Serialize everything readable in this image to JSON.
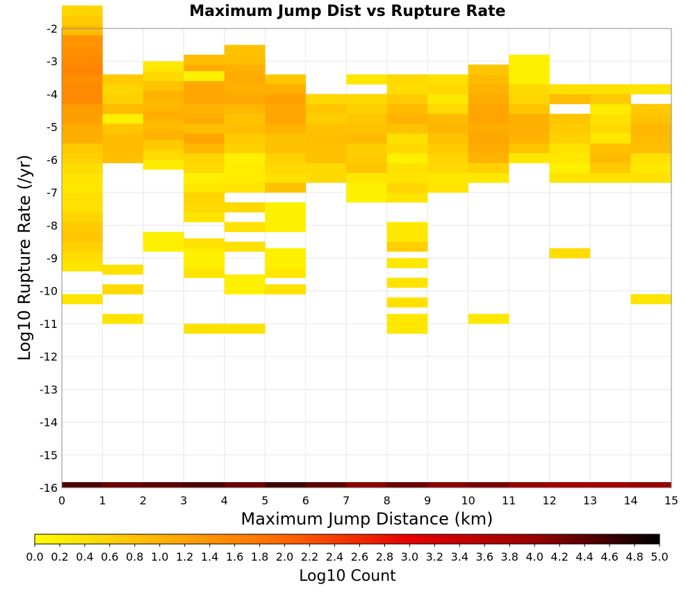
{
  "chart_data": {
    "type": "heatmap",
    "title": "Maximum Jump Dist vs Rupture Rate",
    "xlabel": "Maximum Jump Distance (km)",
    "ylabel": "Log10 Rupture Rate (/yr)",
    "xlim": [
      0,
      15
    ],
    "ylim": [
      -16,
      -2
    ],
    "xticks": [
      "0",
      "1",
      "2",
      "3",
      "4",
      "5",
      "6",
      "7",
      "8",
      "9",
      "10",
      "11",
      "12",
      "13",
      "14",
      "15"
    ],
    "yticks": [
      "-2",
      "-3",
      "-4",
      "-5",
      "-6",
      "-7",
      "-8",
      "-9",
      "-10",
      "-11",
      "-12",
      "-13",
      "-14",
      "-15",
      "-16"
    ],
    "grid": true,
    "x_bin_width": 1,
    "y_bin_height": 0.3,
    "colorbar": {
      "label": "Log10 Count",
      "range": [
        0,
        5
      ],
      "ticks": [
        "0.0",
        "0.2",
        "0.4",
        "0.6",
        "0.8",
        "1.0",
        "1.2",
        "1.4",
        "1.6",
        "1.8",
        "2.0",
        "2.2",
        "2.4",
        "2.6",
        "2.8",
        "3.0",
        "3.2",
        "3.4",
        "3.6",
        "3.8",
        "4.0",
        "4.2",
        "4.4",
        "4.6",
        "4.8",
        "5.0"
      ],
      "colors": [
        "#ffff00",
        "#ffb300",
        "#ff6600",
        "#e60000",
        "#990000",
        "#000000"
      ]
    },
    "columns": [
      {
        "x": 0,
        "y0": -7.0,
        "values": [
          0.3,
          0.35,
          0.45,
          0.6,
          0.7,
          1.05,
          1.1,
          1.25,
          1.3,
          1.55,
          1.55,
          1.5,
          1.6,
          1.55,
          1.45,
          1.4,
          0.9,
          0.7,
          0.55
        ]
      },
      {
        "x": 0,
        "y0": -8.2,
        "values": [
          0.7,
          0.55,
          0.4,
          0.4
        ]
      },
      {
        "x": 0,
        "y0": -9.4,
        "values": [
          0.35,
          0.45,
          0.6,
          0.75
        ]
      },
      {
        "x": 0,
        "y0": -10.4,
        "values": [
          0.35
        ]
      },
      {
        "x": 1,
        "y0": -6.1,
        "values": [
          0.85,
          0.9,
          0.9,
          0.75,
          0.2,
          0.9,
          0.6,
          0.55,
          0.7
        ]
      },
      {
        "x": 1,
        "y0": -9.5,
        "values": [
          0.4
        ]
      },
      {
        "x": 1,
        "y0": -10.1,
        "values": [
          0.5
        ]
      },
      {
        "x": 1,
        "y0": -11.0,
        "values": [
          0.35
        ]
      },
      {
        "x": 2,
        "y0": -6.3,
        "values": [
          0.25,
          0.5,
          0.7,
          1.0,
          0.9,
          1.05,
          0.95,
          1.0,
          0.8,
          0.5,
          0.3
        ]
      },
      {
        "x": 2,
        "y0": -8.8,
        "values": [
          0.2,
          0.2
        ]
      },
      {
        "x": 3,
        "y0": -7.0,
        "values": [
          0.3,
          0.2,
          0.5,
          0.55,
          0.95,
          1.2,
          0.85,
          1.1,
          1.0,
          1.2,
          1.15,
          1.15,
          1.1,
          0.9
        ]
      },
      {
        "x": 3,
        "y0": -3.6,
        "values": [
          0.2
        ]
      },
      {
        "x": 3,
        "y0": -7.9,
        "values": [
          0.35,
          0.5,
          0.55
        ]
      },
      {
        "x": 3,
        "y0": -9.6,
        "values": [
          0.35,
          0.2,
          0.2,
          0.4
        ]
      },
      {
        "x": 3,
        "y0": -11.3,
        "values": [
          0.4
        ]
      },
      {
        "x": 4,
        "y0": -7.0,
        "values": [
          0.35,
          0.25,
          0.25,
          0.2,
          0.6,
          0.7,
          0.85,
          0.8,
          0.95,
          1.15,
          1.05,
          1.1,
          1.05,
          0.85,
          0.8
        ]
      },
      {
        "x": 4,
        "y0": -7.6,
        "values": [
          0.5
        ]
      },
      {
        "x": 4,
        "y0": -8.2,
        "values": [
          0.4
        ]
      },
      {
        "x": 4,
        "y0": -8.8,
        "values": [
          0.4
        ]
      },
      {
        "x": 4,
        "y0": -10.1,
        "values": [
          0.2,
          0.2
        ]
      },
      {
        "x": 4,
        "y0": -11.3,
        "values": [
          0.4
        ]
      },
      {
        "x": 5,
        "y0": -7.0,
        "values": [
          0.8,
          0.4,
          0.5,
          0.6,
          0.8,
          0.8,
          1.0,
          1.15,
          1.15,
          1.25,
          1.05,
          0.75
        ]
      },
      {
        "x": 5,
        "y0": -8.2,
        "values": [
          0.2,
          0.2,
          0.2
        ]
      },
      {
        "x": 5,
        "y0": -9.6,
        "values": [
          0.3,
          0.2,
          0.2
        ]
      },
      {
        "x": 5,
        "y0": -10.1,
        "values": [
          0.4
        ]
      },
      {
        "x": 6,
        "y0": -6.7,
        "values": [
          0.5,
          0.5,
          0.8,
          0.8,
          0.85,
          0.8,
          0.65,
          0.75,
          0.5
        ]
      },
      {
        "x": 7,
        "y0": -7.3,
        "values": [
          0.2,
          0.2,
          0.3,
          0.75,
          0.7,
          0.65,
          0.9,
          0.8,
          0.75,
          0.6,
          0.5
        ]
      },
      {
        "x": 7,
        "y0": -3.7,
        "values": [
          0.3
        ]
      },
      {
        "x": 8,
        "y0": -7.3,
        "values": [
          0.35,
          0.55,
          0.35,
          0.4,
          0.2,
          0.5,
          0.4,
          0.8,
          1.0,
          0.9,
          0.7,
          0.45,
          0.5
        ]
      },
      {
        "x": 8,
        "y0": -8.8,
        "values": [
          0.65,
          0.3,
          0.3
        ]
      },
      {
        "x": 8,
        "y0": -9.3,
        "values": [
          0.3
        ]
      },
      {
        "x": 8,
        "y0": -9.9,
        "values": [
          0.35
        ]
      },
      {
        "x": 8,
        "y0": -10.5,
        "values": [
          0.4
        ]
      },
      {
        "x": 8,
        "y0": -11.3,
        "values": [
          0.3,
          0.3
        ]
      },
      {
        "x": 9,
        "y0": -7.0,
        "values": [
          0.35,
          0.3,
          0.5,
          0.55,
          0.7,
          0.8,
          0.95,
          0.9,
          0.5,
          0.3,
          0.5,
          0.4
        ]
      },
      {
        "x": 10,
        "y0": -6.7,
        "values": [
          0.3,
          0.6,
          1.0,
          1.1,
          1.15,
          1.1,
          1.2,
          1.2,
          1.1,
          1.0,
          0.9,
          0.75
        ]
      },
      {
        "x": 10,
        "y0": -11.0,
        "values": [
          0.3
        ]
      },
      {
        "x": 11,
        "y0": -6.1,
        "values": [
          0.3,
          0.75,
          1.0,
          1.05,
          1.05,
          0.75,
          0.55,
          0.5,
          0.2,
          0.2,
          0.2
        ]
      },
      {
        "x": 12,
        "y0": -6.7,
        "values": [
          0.35,
          0.2,
          0.3,
          0.4,
          0.6,
          0.7,
          0.75
        ]
      },
      {
        "x": 12,
        "y0": -4.3,
        "values": [
          0.9,
          0.4
        ]
      },
      {
        "x": 12,
        "y0": -9.0,
        "values": [
          0.45
        ]
      },
      {
        "x": 13,
        "y0": -6.7,
        "values": [
          0.35,
          0.7,
          0.9,
          0.8,
          0.3,
          0.5,
          0.4,
          0.25
        ]
      },
      {
        "x": 13,
        "y0": -4.3,
        "values": [
          0.7,
          0.4
        ]
      },
      {
        "x": 14,
        "y0": -6.7,
        "values": [
          0.4,
          0.3,
          0.4,
          0.85,
          0.9,
          0.95,
          0.8,
          0.7
        ]
      },
      {
        "x": 14,
        "y0": -4.0,
        "values": [
          0.35
        ]
      },
      {
        "x": 14,
        "y0": -10.4,
        "values": [
          0.35
        ]
      }
    ],
    "bottom_row": {
      "y": -16,
      "values": [
        4.5,
        4.3,
        4.4,
        4.5,
        4.3,
        4.6,
        4.4,
        4.1,
        4.3,
        4.1,
        4.2,
        4.0,
        3.9,
        3.9,
        4.0
      ]
    }
  }
}
